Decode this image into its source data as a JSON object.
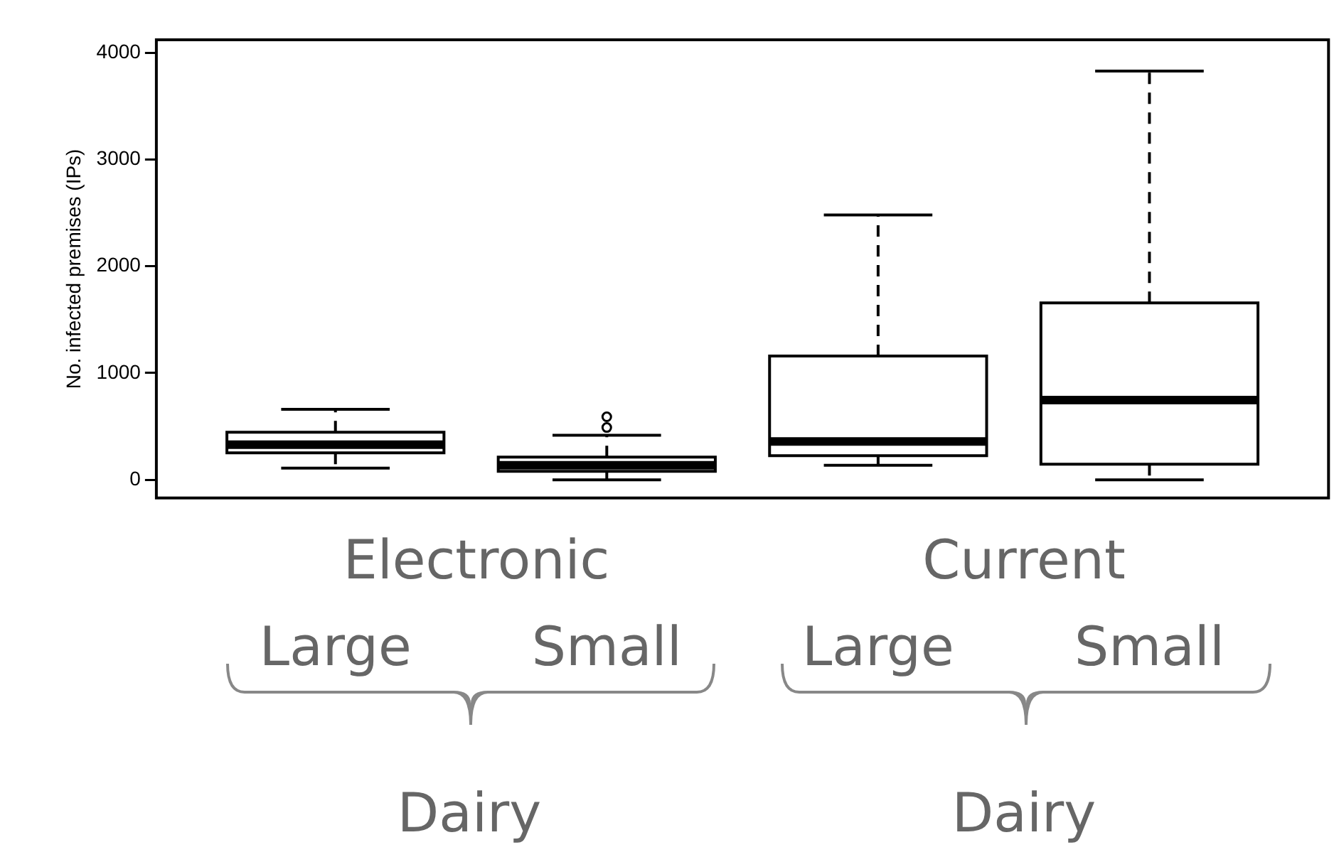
{
  "chart_data": {
    "type": "box",
    "ylabel": "No. infected premises (IPs)",
    "categories": [
      "Large",
      "Small",
      "Large",
      "Small"
    ],
    "boxes": [
      {
        "low": 110,
        "q1": 253,
        "median": 330,
        "q3": 445,
        "high": 660
      },
      {
        "low": 0,
        "q1": 80,
        "median": 137,
        "q3": 213,
        "high": 418,
        "outliers": [
          490,
          590
        ]
      },
      {
        "low": 137,
        "q1": 227,
        "median": 360,
        "q3": 1160,
        "high": 2480
      },
      {
        "low": 0,
        "q1": 147,
        "median": 747,
        "q3": 1657,
        "high": 3827
      }
    ],
    "ylim": [
      -170,
      4120
    ],
    "yticks": [
      0,
      1000,
      2000,
      3000,
      4000
    ],
    "grid": false,
    "legend": false,
    "annotations": [
      "Electronic",
      "Current",
      "Dairy",
      "Dairy"
    ]
  }
}
